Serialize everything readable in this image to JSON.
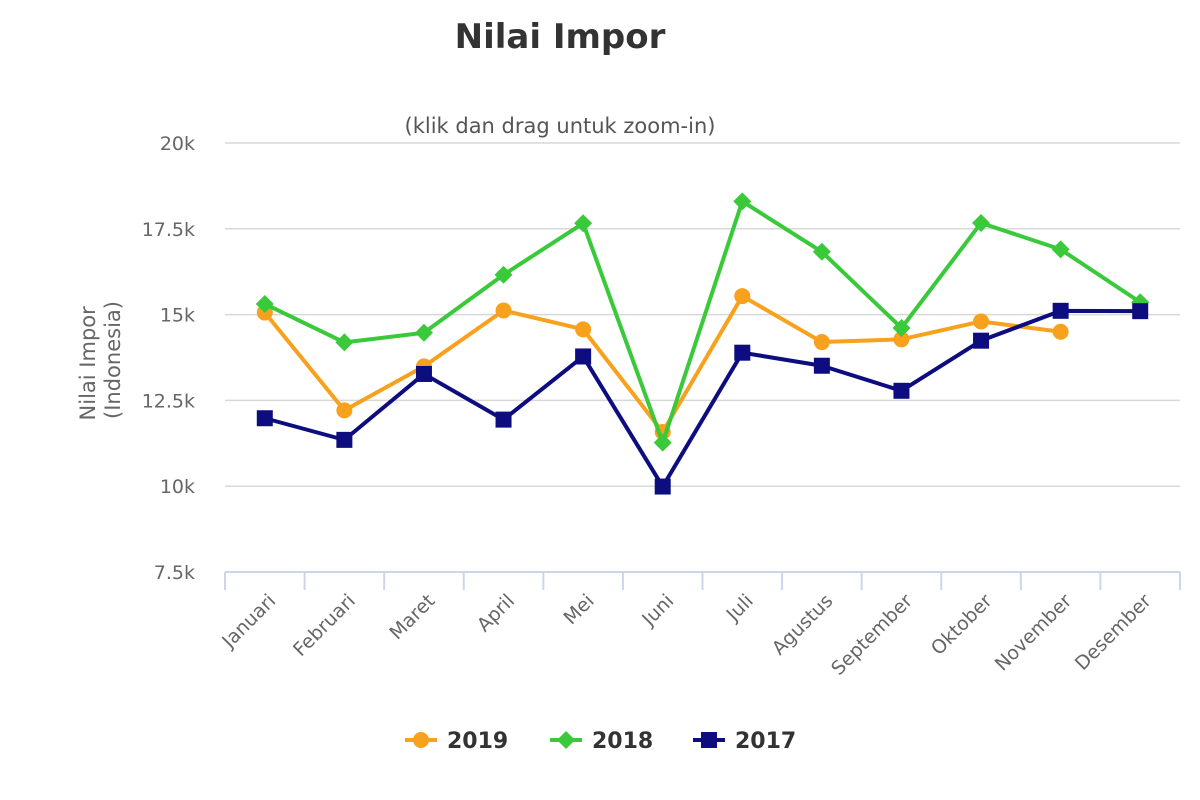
{
  "chart_data": {
    "type": "line",
    "title": "Nilai Impor",
    "subtitle": "(klik dan drag untuk zoom-in)",
    "ylabel_lines": [
      "Nilai Impor",
      "(Indonesia)"
    ],
    "xlabel": "",
    "categories": [
      "Januari",
      "Februari",
      "Maret",
      "April",
      "Mei",
      "Juni",
      "Juli",
      "Agustus",
      "September",
      "Oktober",
      "November",
      "Desember"
    ],
    "ylim": [
      7500,
      20000
    ],
    "yticks": [
      7500,
      10000,
      12500,
      15000,
      17500,
      20000
    ],
    "ytick_labels": [
      "7.5k",
      "10k",
      "12.5k",
      "15k",
      "17.5k",
      "20k"
    ],
    "grid": true,
    "legend_position": "bottom",
    "series": [
      {
        "name": "2019",
        "color": "#f7a11c",
        "marker": "circle",
        "values": [
          15060,
          12210,
          13490,
          15120,
          14570,
          11580,
          15540,
          14200,
          14280,
          14800,
          14500,
          null
        ]
      },
      {
        "name": "2018",
        "color": "#3ac93a",
        "marker": "diamond",
        "values": [
          15310,
          14190,
          14470,
          16160,
          17660,
          11270,
          18300,
          16830,
          14610,
          17670,
          16900,
          15360
        ]
      },
      {
        "name": "2017",
        "color": "#0d0d7f",
        "marker": "square",
        "values": [
          11980,
          11350,
          13270,
          11940,
          13780,
          9990,
          13890,
          13510,
          12780,
          14240,
          15110,
          15100
        ]
      }
    ]
  }
}
